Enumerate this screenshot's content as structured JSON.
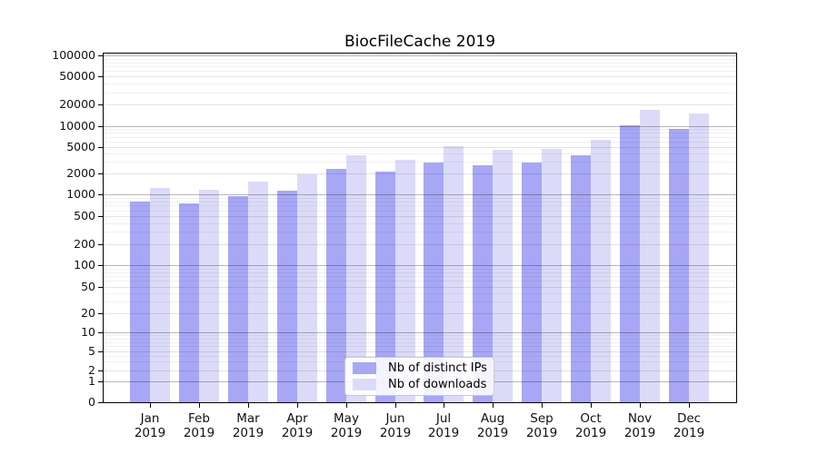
{
  "title": "BiocFileCache 2019",
  "chart_data": {
    "type": "bar",
    "title": "BiocFileCache 2019",
    "x_year": "2019",
    "categories": [
      "Jan",
      "Feb",
      "Mar",
      "Apr",
      "May",
      "Jun",
      "Jul",
      "Aug",
      "Sep",
      "Oct",
      "Nov",
      "Dec"
    ],
    "series": [
      {
        "name": "Nb of distinct IPs",
        "color": "#a7a7f6",
        "values": [
          800,
          760,
          960,
          1140,
          2370,
          2140,
          2930,
          2700,
          2950,
          3740,
          10300,
          9100
        ]
      },
      {
        "name": "Nb of downloads",
        "color": "#dbdbf9",
        "values": [
          1250,
          1190,
          1560,
          1950,
          3740,
          3210,
          5070,
          4490,
          4620,
          6220,
          17100,
          14900
        ]
      }
    ],
    "y_ticks": [
      0,
      1,
      2,
      5,
      10,
      20,
      50,
      100,
      200,
      500,
      1000,
      2000,
      5000,
      10000,
      20000,
      50000,
      100000
    ],
    "ylim": [
      0,
      100000
    ],
    "yscale": "symlog",
    "grid": true,
    "legend_position": "lower center inside plot",
    "xlabel": "",
    "ylabel": ""
  }
}
